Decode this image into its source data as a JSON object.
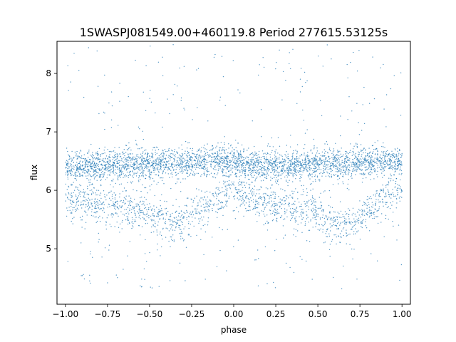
{
  "chart_data": {
    "type": "scatter",
    "title": "1SWASPJ081549.00+460119.8 Period 277615.53125s",
    "xlabel": "phase",
    "ylabel": "flux",
    "xlim": [
      -1.05,
      1.05
    ],
    "ylim": [
      4.05,
      8.55
    ],
    "x_ticks": [
      -1.0,
      -0.75,
      -0.5,
      -0.25,
      0.0,
      0.25,
      0.5,
      0.75,
      1.0
    ],
    "x_tick_labels": [
      "−1.00",
      "−0.75",
      "−0.50",
      "−0.25",
      "0.00",
      "0.25",
      "0.50",
      "0.75",
      "1.00"
    ],
    "y_ticks": [
      5,
      6,
      7,
      8
    ],
    "y_tick_labels": [
      "5",
      "6",
      "7",
      "8"
    ],
    "grid": false,
    "marker_color": "#1f77b4",
    "series": [
      {
        "description_points": [
          {
            "phase": -1.0,
            "flux_upper_band": 6.42,
            "flux_lower_band": 5.85
          },
          {
            "phase": -0.9,
            "flux_upper_band": 6.4,
            "flux_lower_band": 5.8
          },
          {
            "phase": -0.75,
            "flux_upper_band": 6.42,
            "flux_lower_band": 5.75
          },
          {
            "phase": -0.62,
            "flux_upper_band": 6.45,
            "flux_lower_band": 5.65
          },
          {
            "phase": -0.5,
            "flux_upper_band": 6.45,
            "flux_lower_band": 5.6
          },
          {
            "phase": -0.35,
            "flux_upper_band": 6.45,
            "flux_lower_band": 5.4
          },
          {
            "phase": -0.2,
            "flux_upper_band": 6.5,
            "flux_lower_band": 5.65
          },
          {
            "phase": -0.1,
            "flux_upper_band": 6.5,
            "flux_lower_band": 5.85
          },
          {
            "phase": 0.0,
            "flux_upper_band": 6.5,
            "flux_lower_band": 6.0
          },
          {
            "phase": 0.1,
            "flux_upper_band": 6.45,
            "flux_lower_band": 5.85
          },
          {
            "phase": 0.25,
            "flux_upper_band": 6.4,
            "flux_lower_band": 5.75
          },
          {
            "phase": 0.38,
            "flux_upper_band": 6.42,
            "flux_lower_band": 5.7
          },
          {
            "phase": 0.5,
            "flux_upper_band": 6.45,
            "flux_lower_band": 5.6
          },
          {
            "phase": 0.65,
            "flux_upper_band": 6.45,
            "flux_lower_band": 5.4
          },
          {
            "phase": 0.8,
            "flux_upper_band": 6.5,
            "flux_lower_band": 5.65
          },
          {
            "phase": 0.9,
            "flux_upper_band": 6.5,
            "flux_lower_band": 5.85
          },
          {
            "phase": 1.0,
            "flux_upper_band": 6.5,
            "flux_lower_band": 6.0
          }
        ]
      }
    ]
  }
}
